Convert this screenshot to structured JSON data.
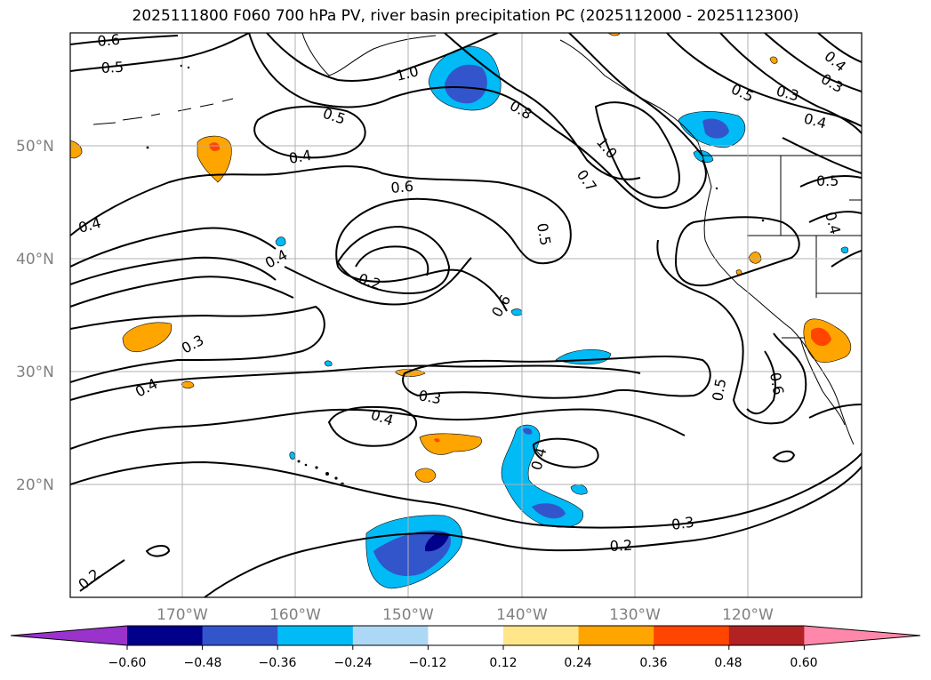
{
  "title": "2025111800 F060 700 hPa PV, river basin precipitation PC (2025112000 - 2025112300)",
  "map": {
    "projection": "PlateCarree",
    "lon_range": [
      -180,
      -110
    ],
    "lat_range": [
      10,
      60
    ],
    "lat_ticks": [
      {
        "lat": 50,
        "label": "50°N"
      },
      {
        "lat": 40,
        "label": "40°N"
      },
      {
        "lat": 30,
        "label": "30°N"
      },
      {
        "lat": 20,
        "label": "20°N"
      }
    ],
    "lon_ticks": [
      {
        "lon": -170,
        "label": "170°W"
      },
      {
        "lon": -160,
        "label": "160°W"
      },
      {
        "lon": -150,
        "label": "150°W"
      },
      {
        "lon": -140,
        "label": "140°W"
      },
      {
        "lon": -130,
        "label": "130°W"
      },
      {
        "lon": -120,
        "label": "120°W"
      }
    ],
    "gridlines": true
  },
  "contour_labels": [
    "0.6",
    "0.5",
    "1.0",
    "0.8",
    "0.5",
    "0.4",
    "0.5",
    "0.3",
    "0.4",
    "0.4",
    "0.3",
    "1.0",
    "0.7",
    "0.5",
    "0.6",
    "0.5",
    "0.4",
    "0.4",
    "0.4",
    "0.2",
    "0.6",
    "0.3",
    "0.4",
    "0.3",
    "0.4",
    "0.5",
    "0.6",
    "0.4",
    "0.3",
    "0.2",
    "0.2"
  ],
  "colorbar": {
    "extend": "both",
    "colors": [
      "#9933cc",
      "#00008b",
      "#3355cc",
      "#00bbf5",
      "#add8f5",
      "#ffffff",
      "#ffe68a",
      "#ffa500",
      "#ff4500",
      "#b22222",
      "#ff88aa"
    ],
    "tick_labels": [
      "−0.60",
      "−0.48",
      "−0.36",
      "−0.24",
      "−0.12",
      "0.12",
      "0.24",
      "0.36",
      "0.48",
      "0.60"
    ]
  }
}
